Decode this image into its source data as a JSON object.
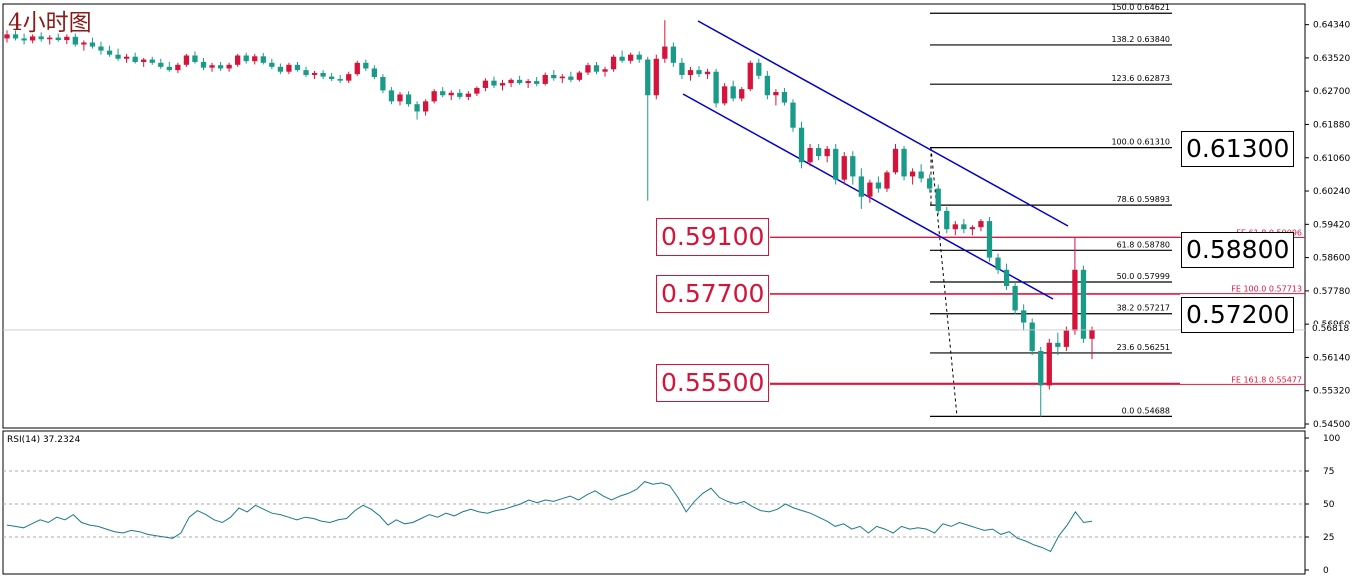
{
  "title": "4小时图",
  "rsi_label": "RSI(14) 37.2324",
  "current_price": "0.56818",
  "colors": {
    "bull": "#d4143a",
    "bear": "#1a9b8a",
    "channel": "#0000cc",
    "fe": "#e0163c",
    "rsi": "#1a7a8a"
  },
  "chart_data": [
    {
      "type": "candlestick",
      "timeframe": "4H",
      "ylim": [
        0.545,
        0.6475
      ],
      "y_ticks": [
        "0.64340",
        "0.63520",
        "0.62700",
        "0.61880",
        "0.61060",
        "0.60240",
        "0.59420",
        "0.58600",
        "0.57780",
        "0.56960",
        "0.56140",
        "0.55320",
        "0.54500"
      ],
      "highlight_levels": [
        {
          "label": "0.61300",
          "value": 0.613,
          "style": "black"
        },
        {
          "label": "0.58800",
          "value": 0.588,
          "style": "black"
        },
        {
          "label": "0.57200",
          "value": 0.572,
          "style": "black"
        },
        {
          "label": "0.59100",
          "value": 0.591,
          "style": "red"
        },
        {
          "label": "0.57700",
          "value": 0.577,
          "style": "red"
        },
        {
          "label": "0.55500",
          "value": 0.555,
          "style": "red"
        }
      ],
      "fib_retracement": [
        {
          "label": "150.0  0.64621",
          "value": 0.64621
        },
        {
          "label": "138.2  0.63840",
          "value": 0.6384
        },
        {
          "label": "123.6  0.62873",
          "value": 0.62873
        },
        {
          "label": "100.0  0.61310",
          "value": 0.6131
        },
        {
          "label": "78.6  0.59893",
          "value": 0.59893
        },
        {
          "label": "61.8  0.58780",
          "value": 0.5878
        },
        {
          "label": "50.0  0.57999",
          "value": 0.57999
        },
        {
          "label": "38.2  0.57217",
          "value": 0.57217
        },
        {
          "label": "23.6  0.56251",
          "value": 0.56251
        },
        {
          "label": "0.0  0.54688",
          "value": 0.54688
        }
      ],
      "fib_expansion": [
        {
          "label": "FE 61.8  0.59096",
          "value": 0.59096
        },
        {
          "label": "FE 100.0  0.57713",
          "value": 0.57713
        },
        {
          "label": "FE 161.8  0.55477",
          "value": 0.55477
        }
      ],
      "channel": {
        "upper": [
          [
            0.6455,
            0.595
          ]
        ],
        "lower": [
          [
            0.6283,
            0.5775
          ]
        ]
      },
      "candles": [
        [
          0.64,
          0.642,
          0.639,
          0.641
        ],
        [
          0.641,
          0.642,
          0.6395,
          0.64
        ],
        [
          0.64,
          0.6412,
          0.6385,
          0.6395
        ],
        [
          0.6395,
          0.641,
          0.6388,
          0.6405
        ],
        [
          0.6405,
          0.6415,
          0.6392,
          0.6398
        ],
        [
          0.6398,
          0.6408,
          0.6385,
          0.6402
        ],
        [
          0.6402,
          0.6412,
          0.6392,
          0.6396
        ],
        [
          0.6396,
          0.641,
          0.6386,
          0.6404
        ],
        [
          0.6404,
          0.6412,
          0.638,
          0.6385
        ],
        [
          0.6385,
          0.6395,
          0.637,
          0.639
        ],
        [
          0.639,
          0.6402,
          0.6375,
          0.638
        ],
        [
          0.638,
          0.6392,
          0.636,
          0.637
        ],
        [
          0.637,
          0.6382,
          0.6355,
          0.636
        ],
        [
          0.636,
          0.6375,
          0.6345,
          0.635
        ],
        [
          0.635,
          0.6362,
          0.634,
          0.6355
        ],
        [
          0.6355,
          0.6365,
          0.6338,
          0.6342
        ],
        [
          0.6342,
          0.6352,
          0.633,
          0.6348
        ],
        [
          0.6348,
          0.6355,
          0.6335,
          0.634
        ],
        [
          0.634,
          0.635,
          0.6325,
          0.633
        ],
        [
          0.633,
          0.6342,
          0.6318,
          0.6322
        ],
        [
          0.6322,
          0.634,
          0.6315,
          0.6335
        ],
        [
          0.6335,
          0.6362,
          0.633,
          0.6358
        ],
        [
          0.6358,
          0.6368,
          0.6338,
          0.6342
        ],
        [
          0.6342,
          0.6352,
          0.6322,
          0.6328
        ],
        [
          0.6328,
          0.634,
          0.6318,
          0.6334
        ],
        [
          0.6334,
          0.6342,
          0.632,
          0.6326
        ],
        [
          0.6326,
          0.634,
          0.6318,
          0.6335
        ],
        [
          0.6335,
          0.6362,
          0.633,
          0.6358
        ],
        [
          0.6358,
          0.6365,
          0.6338,
          0.6344
        ],
        [
          0.6344,
          0.6362,
          0.6336,
          0.6356
        ],
        [
          0.6356,
          0.6364,
          0.6336,
          0.634
        ],
        [
          0.634,
          0.635,
          0.6324,
          0.633
        ],
        [
          0.633,
          0.6338,
          0.6312,
          0.6318
        ],
        [
          0.6318,
          0.634,
          0.6312,
          0.6335
        ],
        [
          0.6335,
          0.6342,
          0.6318,
          0.6322
        ],
        [
          0.6322,
          0.633,
          0.6305,
          0.631
        ],
        [
          0.631,
          0.632,
          0.63,
          0.6315
        ],
        [
          0.6315,
          0.6322,
          0.63,
          0.6306
        ],
        [
          0.6306,
          0.6315,
          0.6295,
          0.63
        ],
        [
          0.63,
          0.631,
          0.629,
          0.6296
        ],
        [
          0.6296,
          0.6318,
          0.629,
          0.6312
        ],
        [
          0.6312,
          0.6345,
          0.6308,
          0.634
        ],
        [
          0.634,
          0.6348,
          0.632,
          0.6326
        ],
        [
          0.6326,
          0.6334,
          0.63,
          0.6305
        ],
        [
          0.6305,
          0.6312,
          0.6265,
          0.6272
        ],
        [
          0.6272,
          0.628,
          0.6238,
          0.6245
        ],
        [
          0.6245,
          0.6268,
          0.6235,
          0.6262
        ],
        [
          0.6262,
          0.627,
          0.6232,
          0.6238
        ],
        [
          0.6238,
          0.6245,
          0.62,
          0.622
        ],
        [
          0.622,
          0.625,
          0.621,
          0.6245
        ],
        [
          0.6245,
          0.6275,
          0.624,
          0.627
        ],
        [
          0.627,
          0.628,
          0.6255,
          0.626
        ],
        [
          0.626,
          0.6272,
          0.6248,
          0.6266
        ],
        [
          0.6266,
          0.6275,
          0.625,
          0.6256
        ],
        [
          0.6256,
          0.627,
          0.6248,
          0.6264
        ],
        [
          0.6264,
          0.6282,
          0.6258,
          0.6278
        ],
        [
          0.6278,
          0.6302,
          0.627,
          0.6296
        ],
        [
          0.6296,
          0.6306,
          0.6278,
          0.6284
        ],
        [
          0.6284,
          0.6298,
          0.6272,
          0.629
        ],
        [
          0.629,
          0.6302,
          0.628,
          0.6298
        ],
        [
          0.6298,
          0.6308,
          0.6286,
          0.629
        ],
        [
          0.629,
          0.63,
          0.6278,
          0.6295
        ],
        [
          0.6295,
          0.6305,
          0.6282,
          0.6288
        ],
        [
          0.6288,
          0.6316,
          0.6284,
          0.631
        ],
        [
          0.631,
          0.6322,
          0.6296,
          0.6302
        ],
        [
          0.6302,
          0.6312,
          0.629,
          0.6306
        ],
        [
          0.6306,
          0.6318,
          0.6292,
          0.6298
        ],
        [
          0.6298,
          0.632,
          0.6294,
          0.6316
        ],
        [
          0.6316,
          0.634,
          0.631,
          0.6334
        ],
        [
          0.6334,
          0.6342,
          0.6312,
          0.6318
        ],
        [
          0.6318,
          0.633,
          0.6306,
          0.6324
        ],
        [
          0.6324,
          0.636,
          0.6318,
          0.6355
        ],
        [
          0.6355,
          0.637,
          0.634,
          0.6345
        ],
        [
          0.6345,
          0.6365,
          0.6338,
          0.636
        ],
        [
          0.636,
          0.6368,
          0.634,
          0.6348
        ],
        [
          0.6348,
          0.6355,
          0.6,
          0.626
        ],
        [
          0.626,
          0.636,
          0.625,
          0.635
        ],
        [
          0.635,
          0.6445,
          0.634,
          0.638
        ],
        [
          0.638,
          0.639,
          0.633,
          0.634
        ],
        [
          0.634,
          0.6352,
          0.63,
          0.631
        ],
        [
          0.631,
          0.633,
          0.6296,
          0.6322
        ],
        [
          0.6322,
          0.6332,
          0.6305,
          0.6312
        ],
        [
          0.6312,
          0.6325,
          0.63,
          0.6318
        ],
        [
          0.6318,
          0.6325,
          0.623,
          0.624
        ],
        [
          0.624,
          0.629,
          0.6235,
          0.6282
        ],
        [
          0.6282,
          0.6296,
          0.6245,
          0.6252
        ],
        [
          0.6252,
          0.628,
          0.6245,
          0.6275
        ],
        [
          0.6275,
          0.6345,
          0.627,
          0.634
        ],
        [
          0.634,
          0.635,
          0.63,
          0.6308
        ],
        [
          0.6308,
          0.632,
          0.625,
          0.626
        ],
        [
          0.626,
          0.6275,
          0.6235,
          0.6268
        ],
        [
          0.6268,
          0.6278,
          0.6235,
          0.6242
        ],
        [
          0.6242,
          0.625,
          0.617,
          0.618
        ],
        [
          0.618,
          0.6195,
          0.608,
          0.6095
        ],
        [
          0.6095,
          0.614,
          0.6085,
          0.613
        ],
        [
          0.613,
          0.614,
          0.61,
          0.611
        ],
        [
          0.611,
          0.6135,
          0.6095,
          0.6128
        ],
        [
          0.6128,
          0.614,
          0.604,
          0.6052
        ],
        [
          0.6052,
          0.612,
          0.604,
          0.611
        ],
        [
          0.611,
          0.6122,
          0.604,
          0.606
        ],
        [
          0.606,
          0.608,
          0.598,
          0.601
        ],
        [
          0.601,
          0.6052,
          0.5995,
          0.6045
        ],
        [
          0.6045,
          0.606,
          0.602,
          0.603
        ],
        [
          0.603,
          0.6075,
          0.6022,
          0.607
        ],
        [
          0.607,
          0.614,
          0.6065,
          0.6128
        ],
        [
          0.6128,
          0.6135,
          0.605,
          0.606
        ],
        [
          0.606,
          0.608,
          0.604,
          0.6072
        ],
        [
          0.6072,
          0.609,
          0.6045,
          0.6055
        ],
        [
          0.6055,
          0.6065,
          0.602,
          0.603
        ],
        [
          0.603,
          0.604,
          0.5965,
          0.5975
        ],
        [
          0.5975,
          0.5985,
          0.592,
          0.593
        ],
        [
          0.593,
          0.595,
          0.5915,
          0.5942
        ],
        [
          0.5942,
          0.5955,
          0.592,
          0.593
        ],
        [
          0.593,
          0.594,
          0.5915,
          0.5935
        ],
        [
          0.5935,
          0.5955,
          0.5925,
          0.595
        ],
        [
          0.595,
          0.596,
          0.585,
          0.586
        ],
        [
          0.586,
          0.587,
          0.582,
          0.583
        ],
        [
          0.583,
          0.5845,
          0.578,
          0.579
        ],
        [
          0.579,
          0.58,
          0.572,
          0.573
        ],
        [
          0.573,
          0.5745,
          0.568,
          0.57
        ],
        [
          0.57,
          0.571,
          0.562,
          0.563
        ],
        [
          0.563,
          0.564,
          0.5468,
          0.5545
        ],
        [
          0.5545,
          0.566,
          0.5535,
          0.565
        ],
        [
          0.565,
          0.5675,
          0.562,
          0.564
        ],
        [
          0.564,
          0.569,
          0.563,
          0.568
        ],
        [
          0.568,
          0.591,
          0.567,
          0.583
        ],
        [
          0.583,
          0.584,
          0.565,
          0.566
        ],
        [
          0.566,
          0.569,
          0.561,
          0.5682
        ]
      ]
    },
    {
      "type": "line",
      "name": "RSI(14)",
      "value_label": "37.2324",
      "ylim": [
        0,
        100
      ],
      "y_ticks": [
        "100",
        "75",
        "50",
        "25",
        "0"
      ],
      "levels": [
        75,
        50,
        25
      ],
      "values": [
        34,
        33,
        32,
        35,
        38,
        36,
        40,
        38,
        42,
        36,
        34,
        33,
        31,
        29,
        28,
        30,
        29,
        27,
        26,
        25,
        24,
        28,
        40,
        45,
        42,
        38,
        36,
        40,
        47,
        44,
        49,
        46,
        43,
        42,
        40,
        38,
        40,
        39,
        37,
        36,
        38,
        39,
        45,
        49,
        46,
        41,
        34,
        38,
        35,
        36,
        39,
        42,
        40,
        43,
        41,
        44,
        46,
        44,
        43,
        45,
        46,
        48,
        50,
        53,
        51,
        53,
        52,
        54,
        56,
        53,
        57,
        60,
        56,
        53,
        56,
        58,
        61,
        67,
        65,
        66,
        64,
        55,
        44,
        52,
        58,
        62,
        55,
        52,
        50,
        52,
        48,
        45,
        44,
        46,
        50,
        47,
        45,
        43,
        40,
        37,
        33,
        35,
        31,
        33,
        28,
        33,
        31,
        28,
        33,
        31,
        32,
        31,
        28,
        35,
        33,
        36,
        34,
        32,
        30,
        31,
        27,
        29,
        24,
        22,
        19,
        17,
        14,
        26,
        34,
        44,
        36,
        37
      ]
    }
  ]
}
